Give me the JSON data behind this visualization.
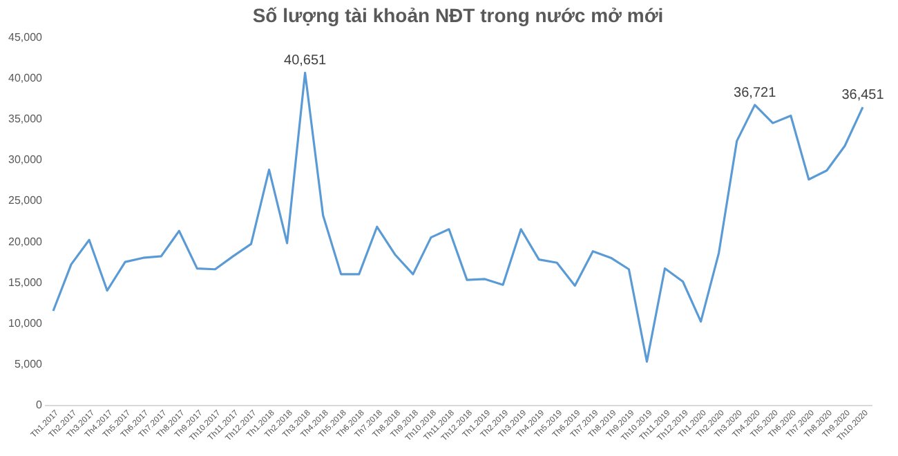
{
  "chart_data": {
    "type": "line",
    "title": "Số lượng tài khoản NĐT trong nước mở mới",
    "categories": [
      "Th1.2017",
      "Th2.2017",
      "Th3.2017",
      "Th4.2017",
      "Th5.2017",
      "Th6.2017",
      "Th7.2017",
      "Th8.2017",
      "Th9.2017",
      "Th10.2017",
      "Th11.2017",
      "Th12.2017",
      "Th1.2018",
      "Th2.2018",
      "Th3.2018",
      "Th4.2018",
      "Th5.2018",
      "Th6.2018",
      "Th7.2018",
      "Th8.2018",
      "Th9.2018",
      "Th10.2018",
      "Th11.2018",
      "Th12.2018",
      "Th1.2019",
      "Th2.2019",
      "Th3.2019",
      "Th4.2019",
      "Th5.2019",
      "Th6.2019",
      "Th7.2019",
      "Th8.2019",
      "Th9.2019",
      "Th10.2019",
      "Th11.2019",
      "Th12.2019",
      "Th1.2020",
      "Th2.2020",
      "Th3.2020",
      "Th4.2020",
      "Th5.2020",
      "Th6.2020",
      "Th7.2020",
      "Th8.2020",
      "Th9.2020",
      "Th10.2020"
    ],
    "series": [
      {
        "color": "#5b9bd5",
        "values": [
          11500,
          17200,
          20200,
          14000,
          17500,
          18000,
          18200,
          21300,
          16700,
          16600,
          18200,
          19700,
          28800,
          19800,
          40651,
          23200,
          16000,
          16000,
          21800,
          18400,
          16000,
          20500,
          21500,
          15300,
          15400,
          14700,
          21500,
          17800,
          17400,
          14600,
          18800,
          18000,
          16600,
          5300,
          16700,
          15100,
          10200,
          18600,
          32300,
          36721,
          34500,
          35400,
          27600,
          28700,
          31700,
          36451
        ],
        "value_labels": [
          null,
          null,
          null,
          null,
          null,
          null,
          null,
          null,
          null,
          null,
          null,
          null,
          null,
          null,
          "40,651",
          null,
          null,
          null,
          null,
          null,
          null,
          null,
          null,
          null,
          null,
          null,
          null,
          null,
          null,
          null,
          null,
          null,
          null,
          null,
          null,
          null,
          null,
          null,
          null,
          "36,721",
          null,
          null,
          null,
          null,
          null,
          "36,451"
        ]
      }
    ],
    "ylim": [
      0,
      45000
    ],
    "yticks": [
      0,
      {
        "value": 5000,
        "label": "5,000"
      },
      {
        "value": 10000,
        "label": "10,000"
      },
      {
        "value": 15000,
        "label": "15,000"
      },
      {
        "value": 20000,
        "label": "20,000"
      },
      {
        "value": 25000,
        "label": "25,000"
      },
      {
        "value": 30000,
        "label": "30,000"
      },
      {
        "value": 35000,
        "label": "35,000"
      },
      {
        "value": 40000,
        "label": "40,000"
      },
      {
        "value": 45000,
        "label": "45,000"
      }
    ],
    "grid": false,
    "marker": "none",
    "line_style": "solid"
  }
}
